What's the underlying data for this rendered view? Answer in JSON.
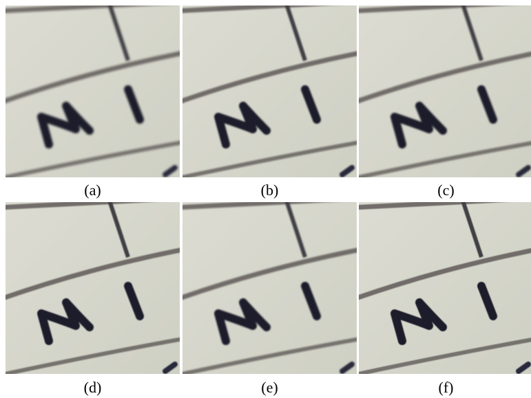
{
  "panels": [
    {
      "id": "a",
      "caption": "(a)",
      "letters": "NI",
      "blur": 1.6
    },
    {
      "id": "b",
      "caption": "(b)",
      "letters": "NI",
      "blur": 1.1
    },
    {
      "id": "c",
      "caption": "(c)",
      "letters": "NI",
      "blur": 1.3
    },
    {
      "id": "d",
      "caption": "(d)",
      "letters": "NI",
      "blur": 0.9
    },
    {
      "id": "e",
      "caption": "(e)",
      "letters": "NI",
      "blur": 1.0
    },
    {
      "id": "f",
      "caption": "(f)",
      "letters": "NI",
      "blur": 0.6
    }
  ],
  "colors": {
    "paper": "#cfd0c4",
    "paper_light": "#dcdcd2",
    "grid_line": "#5f5a58",
    "ink": "#1b1b2b",
    "caption_text": "#000000",
    "background": "#ffffff"
  }
}
